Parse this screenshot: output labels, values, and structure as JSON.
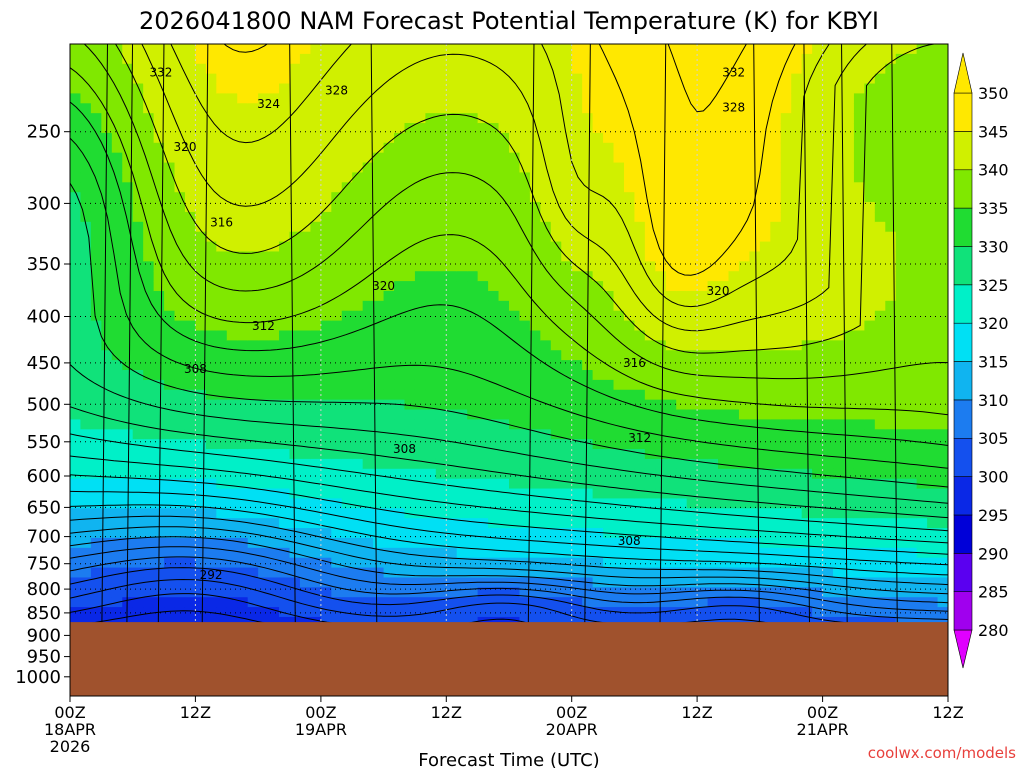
{
  "chart_data": {
    "type": "heatmap",
    "title": "2026041800 NAM Forecast Potential Temperature (K) for KBYI",
    "xlabel": "Forecast Time (UTC)",
    "ylabel": "",
    "credit": "coolwx.com/models",
    "y_scale": "log-pressure",
    "ylim": [
      1050,
      200
    ],
    "y_ticks": [
      250,
      300,
      350,
      400,
      450,
      500,
      550,
      600,
      650,
      700,
      750,
      800,
      850,
      900,
      950,
      1000
    ],
    "x_ticks": [
      {
        "hour": 0,
        "l1": "00Z",
        "l2": "18APR",
        "l3": "2026"
      },
      {
        "hour": 12,
        "l1": "12Z",
        "l2": "",
        "l3": ""
      },
      {
        "hour": 24,
        "l1": "00Z",
        "l2": "19APR",
        "l3": ""
      },
      {
        "hour": 36,
        "l1": "12Z",
        "l2": "",
        "l3": ""
      },
      {
        "hour": 48,
        "l1": "00Z",
        "l2": "20APR",
        "l3": ""
      },
      {
        "hour": 60,
        "l1": "12Z",
        "l2": "",
        "l3": ""
      },
      {
        "hour": 72,
        "l1": "00Z",
        "l2": "21APR",
        "l3": ""
      },
      {
        "hour": 84,
        "l1": "12Z",
        "l2": "",
        "l3": ""
      }
    ],
    "xlim": [
      0,
      84
    ],
    "surface_pressure": 870,
    "ground_color": "#a0522d",
    "grid": true,
    "colorbar": {
      "levels": [
        280,
        285,
        290,
        295,
        300,
        305,
        310,
        315,
        320,
        325,
        330,
        335,
        340,
        345,
        350
      ],
      "colors": [
        "#e000ff",
        "#a000ee",
        "#5a00f0",
        "#0000d8",
        "#0a28e6",
        "#1450ee",
        "#1c7cf0",
        "#10b4f0",
        "#00e0f4",
        "#00f0c8",
        "#10e27a",
        "#20dc32",
        "#80e800",
        "#d0f000",
        "#ffe800",
        "#ffe800"
      ]
    },
    "contour_labels": [
      {
        "hour": 8.7,
        "p": 215,
        "label": "332"
      },
      {
        "hour": 25.5,
        "p": 225,
        "label": "328"
      },
      {
        "hour": 19,
        "p": 233,
        "label": "324"
      },
      {
        "hour": 11,
        "p": 260,
        "label": "320"
      },
      {
        "hour": 14.5,
        "p": 315,
        "label": "316"
      },
      {
        "hour": 30,
        "p": 370,
        "label": "320"
      },
      {
        "hour": 18.5,
        "p": 410,
        "label": "312"
      },
      {
        "hour": 12,
        "p": 457,
        "label": "308"
      },
      {
        "hour": 32,
        "p": 560,
        "label": "308"
      },
      {
        "hour": 13.5,
        "p": 772,
        "label": "292"
      },
      {
        "hour": 54,
        "p": 450,
        "label": "316"
      },
      {
        "hour": 54.5,
        "p": 545,
        "label": "312"
      },
      {
        "hour": 53.5,
        "p": 708,
        "label": "308"
      },
      {
        "hour": 63.5,
        "p": 215,
        "label": "332"
      },
      {
        "hour": 63.5,
        "p": 235,
        "label": "328"
      },
      {
        "hour": 62,
        "p": 375,
        "label": "320"
      }
    ]
  }
}
